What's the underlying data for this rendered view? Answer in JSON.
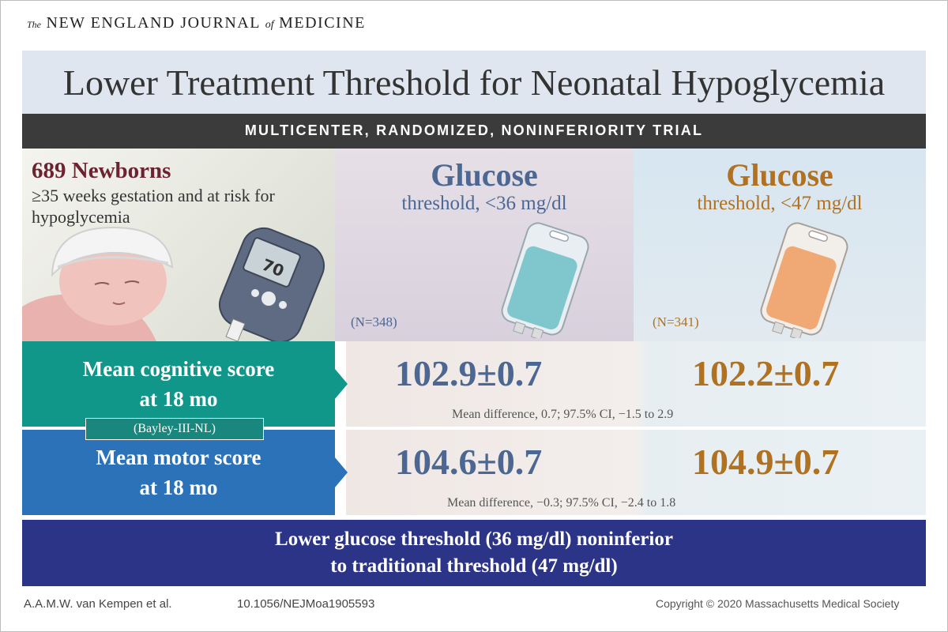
{
  "header": {
    "journal_the": "The",
    "journal_name_1": "NEW ENGLAND JOURNAL",
    "journal_of": "of",
    "journal_name_2": "MEDICINE"
  },
  "title": "Lower Treatment Threshold for Neonatal Hypoglycemia",
  "trial_type": "MULTICENTER, RANDOMIZED, NONINFERIORITY TRIAL",
  "population": {
    "title": "689 Newborns",
    "description": "≥35 weeks gestation and at risk for hypoglycemia",
    "meter_reading": "70"
  },
  "groups": [
    {
      "name": "Glucose",
      "threshold": "threshold, <36 mg/dl",
      "n": "(N=348)",
      "color": "#4b6792"
    },
    {
      "name": "Glucose",
      "threshold": "threshold, <47 mg/dl",
      "n": "(N=341)",
      "color": "#b07121"
    }
  ],
  "outcomes": [
    {
      "label_1": "Mean cognitive score",
      "label_2": "at 18 mo",
      "scale": "(Bayley-III-NL)",
      "value_low": "102.9±0.7",
      "value_high": "102.2±0.7",
      "difference": "Mean difference, 0.7; 97.5% CI, −1.5 to 2.9"
    },
    {
      "label_1": "Mean motor score",
      "label_2": "at 18 mo",
      "value_low": "104.6±0.7",
      "value_high": "104.9±0.7",
      "difference": "Mean difference, −0.3; 97.5% CI, −2.4 to 1.8"
    }
  ],
  "conclusion": {
    "line_1": "Lower glucose threshold (36 mg/dl) noninferior",
    "line_2": "to traditional threshold (47 mg/dl)"
  },
  "footer": {
    "authors": "A.A.M.W. van Kempen et al.",
    "doi": "10.1056/NEJMoa1905593",
    "copyright": "Copyright © 2020 Massachusetts Medical Society"
  },
  "icons": [
    "newborn-illustration",
    "glucose-meter-icon",
    "iv-bag-blue-icon",
    "iv-bag-orange-icon",
    "arrow-right-icon"
  ]
}
